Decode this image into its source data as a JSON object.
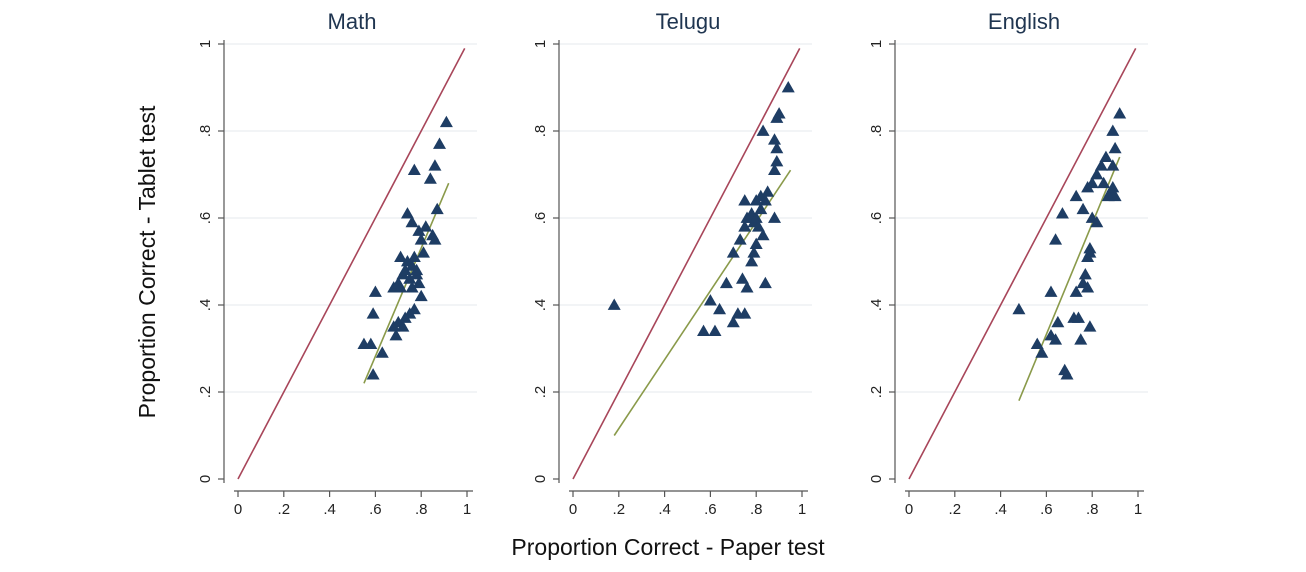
{
  "figure": {
    "xlabel": "Proportion Correct - Paper test",
    "ylabel": "Proportion Correct - Tablet test"
  },
  "chart_data": [
    {
      "type": "scatter",
      "title": "Math",
      "xlim": [
        0,
        1
      ],
      "ylim": [
        0,
        1
      ],
      "x_ticks": [
        "0",
        ".2",
        ".4",
        ".6",
        ".8",
        "1"
      ],
      "y_ticks": [
        "0",
        ".2",
        ".4",
        ".6",
        ".8",
        "1"
      ],
      "grid": "horizontal",
      "points": [
        [
          0.55,
          0.31
        ],
        [
          0.58,
          0.31
        ],
        [
          0.59,
          0.38
        ],
        [
          0.6,
          0.43
        ],
        [
          0.59,
          0.24
        ],
        [
          0.63,
          0.29
        ],
        [
          0.69,
          0.33
        ],
        [
          0.68,
          0.35
        ],
        [
          0.7,
          0.36
        ],
        [
          0.72,
          0.35
        ],
        [
          0.73,
          0.37
        ],
        [
          0.75,
          0.38
        ],
        [
          0.77,
          0.39
        ],
        [
          0.8,
          0.42
        ],
        [
          0.68,
          0.44
        ],
        [
          0.7,
          0.45
        ],
        [
          0.71,
          0.51
        ],
        [
          0.72,
          0.47
        ],
        [
          0.74,
          0.5
        ],
        [
          0.75,
          0.46
        ],
        [
          0.76,
          0.49
        ],
        [
          0.77,
          0.51
        ],
        [
          0.78,
          0.47
        ],
        [
          0.79,
          0.45
        ],
        [
          0.76,
          0.44
        ],
        [
          0.78,
          0.48
        ],
        [
          0.81,
          0.52
        ],
        [
          0.8,
          0.55
        ],
        [
          0.82,
          0.58
        ],
        [
          0.74,
          0.61
        ],
        [
          0.76,
          0.59
        ],
        [
          0.79,
          0.57
        ],
        [
          0.85,
          0.56
        ],
        [
          0.86,
          0.55
        ],
        [
          0.87,
          0.62
        ],
        [
          0.77,
          0.71
        ],
        [
          0.84,
          0.69
        ],
        [
          0.86,
          0.72
        ],
        [
          0.88,
          0.77
        ],
        [
          0.91,
          0.82
        ],
        [
          0.73,
          0.48
        ],
        [
          0.71,
          0.44
        ]
      ],
      "lines": [
        {
          "role": "equality",
          "color": "#a8465a",
          "x": [
            0,
            0.99
          ],
          "y": [
            0,
            0.99
          ]
        },
        {
          "role": "fit",
          "color": "#8a9a4a",
          "x": [
            0.55,
            0.92
          ],
          "y": [
            0.22,
            0.68
          ]
        }
      ],
      "marker_color": "#1e3d64"
    },
    {
      "type": "scatter",
      "title": "Telugu",
      "xlim": [
        0,
        1
      ],
      "ylim": [
        0,
        1
      ],
      "x_ticks": [
        "0",
        ".2",
        ".4",
        ".6",
        ".8",
        "1"
      ],
      "y_ticks": [
        "0",
        ".2",
        ".4",
        ".6",
        ".8",
        "1"
      ],
      "grid": "horizontal",
      "points": [
        [
          0.18,
          0.4
        ],
        [
          0.57,
          0.34
        ],
        [
          0.6,
          0.41
        ],
        [
          0.62,
          0.34
        ],
        [
          0.64,
          0.39
        ],
        [
          0.67,
          0.45
        ],
        [
          0.7,
          0.36
        ],
        [
          0.72,
          0.38
        ],
        [
          0.75,
          0.38
        ],
        [
          0.74,
          0.46
        ],
        [
          0.76,
          0.44
        ],
        [
          0.78,
          0.5
        ],
        [
          0.79,
          0.52
        ],
        [
          0.8,
          0.54
        ],
        [
          0.84,
          0.45
        ],
        [
          0.7,
          0.52
        ],
        [
          0.73,
          0.55
        ],
        [
          0.75,
          0.58
        ],
        [
          0.76,
          0.6
        ],
        [
          0.77,
          0.6
        ],
        [
          0.78,
          0.61
        ],
        [
          0.79,
          0.59
        ],
        [
          0.8,
          0.6
        ],
        [
          0.82,
          0.62
        ],
        [
          0.84,
          0.64
        ],
        [
          0.85,
          0.66
        ],
        [
          0.83,
          0.56
        ],
        [
          0.88,
          0.6
        ],
        [
          0.75,
          0.64
        ],
        [
          0.8,
          0.64
        ],
        [
          0.82,
          0.65
        ],
        [
          0.88,
          0.71
        ],
        [
          0.89,
          0.73
        ],
        [
          0.89,
          0.76
        ],
        [
          0.88,
          0.78
        ],
        [
          0.83,
          0.8
        ],
        [
          0.89,
          0.83
        ],
        [
          0.9,
          0.84
        ],
        [
          0.94,
          0.9
        ],
        [
          0.81,
          0.58
        ]
      ],
      "lines": [
        {
          "role": "equality",
          "color": "#a8465a",
          "x": [
            0,
            0.99
          ],
          "y": [
            0,
            0.99
          ]
        },
        {
          "role": "fit",
          "color": "#8a9a4a",
          "x": [
            0.18,
            0.95
          ],
          "y": [
            0.1,
            0.71
          ]
        }
      ],
      "marker_color": "#1e3d64"
    },
    {
      "type": "scatter",
      "title": "English",
      "xlim": [
        0,
        1
      ],
      "ylim": [
        0,
        1
      ],
      "x_ticks": [
        "0",
        ".2",
        ".4",
        ".6",
        ".8",
        "1"
      ],
      "y_ticks": [
        "0",
        ".2",
        ".4",
        ".6",
        ".8",
        "1"
      ],
      "grid": "horizontal",
      "points": [
        [
          0.48,
          0.39
        ],
        [
          0.56,
          0.31
        ],
        [
          0.58,
          0.29
        ],
        [
          0.62,
          0.33
        ],
        [
          0.64,
          0.32
        ],
        [
          0.65,
          0.36
        ],
        [
          0.62,
          0.43
        ],
        [
          0.64,
          0.55
        ],
        [
          0.67,
          0.61
        ],
        [
          0.68,
          0.25
        ],
        [
          0.69,
          0.24
        ],
        [
          0.72,
          0.37
        ],
        [
          0.74,
          0.37
        ],
        [
          0.73,
          0.43
        ],
        [
          0.76,
          0.45
        ],
        [
          0.77,
          0.47
        ],
        [
          0.78,
          0.51
        ],
        [
          0.79,
          0.52
        ],
        [
          0.79,
          0.35
        ],
        [
          0.75,
          0.32
        ],
        [
          0.73,
          0.65
        ],
        [
          0.76,
          0.62
        ],
        [
          0.78,
          0.67
        ],
        [
          0.8,
          0.68
        ],
        [
          0.82,
          0.7
        ],
        [
          0.84,
          0.72
        ],
        [
          0.86,
          0.74
        ],
        [
          0.88,
          0.66
        ],
        [
          0.89,
          0.67
        ],
        [
          0.9,
          0.65
        ],
        [
          0.85,
          0.68
        ],
        [
          0.87,
          0.65
        ],
        [
          0.89,
          0.72
        ],
        [
          0.9,
          0.76
        ],
        [
          0.89,
          0.8
        ],
        [
          0.92,
          0.84
        ],
        [
          0.8,
          0.6
        ],
        [
          0.82,
          0.59
        ],
        [
          0.78,
          0.44
        ],
        [
          0.79,
          0.53
        ]
      ],
      "lines": [
        {
          "role": "equality",
          "color": "#a8465a",
          "x": [
            0,
            0.99
          ],
          "y": [
            0,
            0.99
          ]
        },
        {
          "role": "fit",
          "color": "#8a9a4a",
          "x": [
            0.48,
            0.92
          ],
          "y": [
            0.18,
            0.74
          ]
        }
      ],
      "marker_color": "#1e3d64"
    }
  ]
}
